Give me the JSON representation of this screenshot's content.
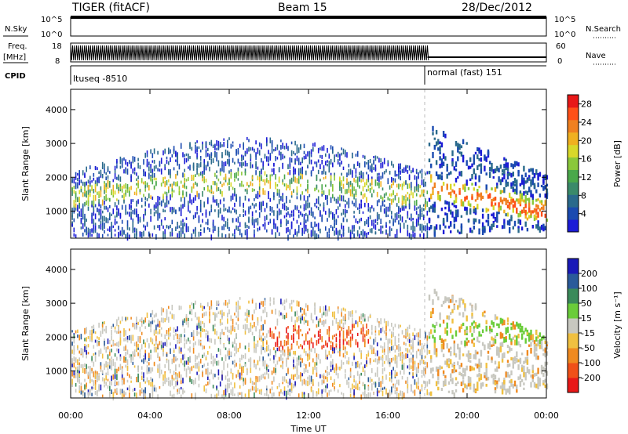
{
  "header": {
    "site": "TIGER (fitACF)",
    "beam": "Beam 15",
    "date": "28/Dec/2012"
  },
  "status_rows": {
    "nsky_label": "N.Sky",
    "nsearch_label": "N.Search",
    "nsky_ticks": [
      "10^5",
      "10^0"
    ],
    "nsearch_ticks": [
      "10^5",
      "10^0"
    ],
    "freq_label_line1": "Freq.",
    "freq_label_line2": "[MHz]",
    "freq_ticks": [
      "18",
      "8"
    ],
    "nave_label": "Nave",
    "nave_ticks": [
      "60",
      "0"
    ],
    "cpid_label": "CPID",
    "cpid_segments": [
      {
        "name": "ltuseq -8510",
        "start": "00:00",
        "end": "18:00"
      },
      {
        "name": "normal (fast) 151",
        "start": "18:00",
        "end": "24:00"
      }
    ]
  },
  "chart_data": [
    {
      "type": "heatmap",
      "ylabel": "Slant Range [km]",
      "xlabel": "Time UT",
      "x_ticks": [
        "00:00",
        "04:00",
        "08:00",
        "12:00",
        "16:00",
        "20:00",
        "00:00"
      ],
      "y_ticks": [
        1000,
        2000,
        3000,
        4000
      ],
      "ylim": [
        200,
        4600
      ],
      "xlim_hours": [
        0,
        24
      ],
      "colorbar": {
        "label": "Power [dB]",
        "ticks": [
          "4",
          "8",
          "12",
          "16",
          "20",
          "24",
          "28"
        ],
        "range": [
          0,
          30
        ],
        "colors": [
          "#1b1bd6",
          "#1a4ab0",
          "#2a6a8c",
          "#3a8a6a",
          "#4aa84a",
          "#8ac83a",
          "#d8d82a",
          "#f0b020",
          "#f08020",
          "#ff5018",
          "#e81818"
        ]
      }
    },
    {
      "type": "heatmap",
      "ylabel": "Slant Range [km]",
      "xlabel": "Time UT",
      "x_ticks": [
        "00:00",
        "04:00",
        "08:00",
        "12:00",
        "16:00",
        "20:00",
        "00:00"
      ],
      "y_ticks": [
        1000,
        2000,
        3000,
        4000
      ],
      "ylim": [
        200,
        4600
      ],
      "xlim_hours": [
        0,
        24
      ],
      "colorbar": {
        "label": "Velocity [m s⁻¹]",
        "ticks": [
          "200",
          "100",
          "50",
          "15",
          "-15",
          "-50",
          "-100",
          "-200"
        ],
        "colors": [
          "#1a1ab8",
          "#2a5a9a",
          "#3a8a5a",
          "#6acc3a",
          "#c8c8c0",
          "#f0c040",
          "#f08a20",
          "#f05018",
          "#e81818"
        ]
      }
    }
  ],
  "xlabel": "Time UT"
}
